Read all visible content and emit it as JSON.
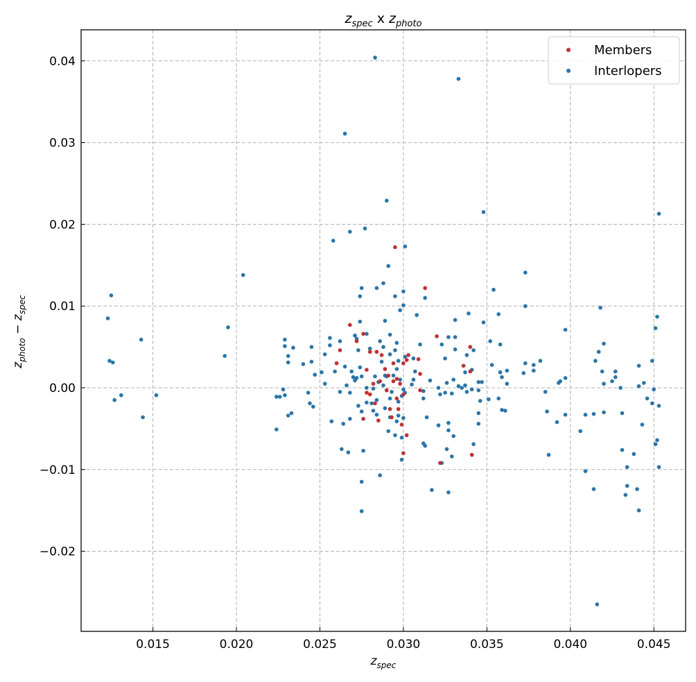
{
  "chart_data": {
    "type": "scatter",
    "title": "z_spec x z_photo",
    "title_parts": {
      "a": "z",
      "a_sub": "spec",
      "mid": " x ",
      "b": "z",
      "b_sub": "photo"
    },
    "xlabel_parts": {
      "main": "z",
      "sub": "spec"
    },
    "ylabel_parts": {
      "a": "z",
      "a_sub": "photo",
      "op": " − ",
      "b": "z",
      "b_sub": "spec"
    },
    "xlim": [
      0.0107,
      0.0469
    ],
    "ylim": [
      -0.0298,
      0.0438
    ],
    "xticks": [
      0.015,
      0.02,
      0.025,
      0.03,
      0.035,
      0.04,
      0.045
    ],
    "xtick_labels": [
      "0.015",
      "0.020",
      "0.025",
      "0.030",
      "0.035",
      "0.040",
      "0.045"
    ],
    "yticks": [
      -0.02,
      -0.01,
      0.0,
      0.01,
      0.02,
      0.03,
      0.04
    ],
    "ytick_labels": [
      "−0.02",
      "−0.01",
      "0.00",
      "0.01",
      "0.02",
      "0.03",
      "0.04"
    ],
    "grid": true,
    "legend_position": "top-right",
    "series": [
      {
        "name": "Members",
        "color": "#d62728",
        "points": [
          [
            0.0295,
            0.0172
          ],
          [
            0.0313,
            0.0122
          ],
          [
            0.0262,
            0.0046
          ],
          [
            0.0276,
            0.0066
          ],
          [
            0.0272,
            0.0057
          ],
          [
            0.028,
            0.0044
          ],
          [
            0.0284,
            0.0044
          ],
          [
            0.0287,
            0.004
          ],
          [
            0.0278,
            0.0022
          ],
          [
            0.0294,
            0.003
          ],
          [
            0.03,
            0.003
          ],
          [
            0.0303,
            0.004
          ],
          [
            0.0309,
            0.0035
          ],
          [
            0.0302,
            0.0034
          ],
          [
            0.032,
            0.0063
          ],
          [
            0.034,
            0.005
          ],
          [
            0.0336,
            0.0027
          ],
          [
            0.034,
            0.002
          ],
          [
            0.0289,
            0.0023
          ],
          [
            0.0282,
            0.0005
          ],
          [
            0.0291,
            0.0015
          ],
          [
            0.0294,
            0.0008
          ],
          [
            0.0296,
            0.0011
          ],
          [
            0.0298,
            0.0005
          ],
          [
            0.0286,
            0.0008
          ],
          [
            0.029,
            -0.0003
          ],
          [
            0.0296,
            -0.0013
          ],
          [
            0.03,
            -0.0008
          ],
          [
            0.0283,
            -0.0019
          ],
          [
            0.0278,
            -0.0006
          ],
          [
            0.028,
            -0.0008
          ],
          [
            0.0292,
            -0.0026
          ],
          [
            0.0297,
            -0.0026
          ],
          [
            0.0293,
            -0.0036
          ],
          [
            0.0276,
            -0.0038
          ],
          [
            0.0299,
            -0.0045
          ],
          [
            0.0302,
            -0.0058
          ],
          [
            0.03,
            -0.008
          ],
          [
            0.031,
            -0.0003
          ],
          [
            0.031,
            0.0017
          ],
          [
            0.026,
            0.003
          ],
          [
            0.0322,
            -0.0092
          ],
          [
            0.0341,
            -0.0082
          ],
          [
            0.0285,
            -0.004
          ],
          [
            0.0268,
            0.0077
          ]
        ]
      },
      {
        "name": "Interlopers",
        "color": "#1f77b4",
        "points": [
          [
            0.0283,
            0.0404
          ],
          [
            0.0333,
            0.0378
          ],
          [
            0.0265,
            0.0311
          ],
          [
            0.029,
            0.0229
          ],
          [
            0.0348,
            0.0215
          ],
          [
            0.0453,
            0.0213
          ],
          [
            0.0277,
            0.0195
          ],
          [
            0.0268,
            0.0191
          ],
          [
            0.0258,
            0.018
          ],
          [
            0.0301,
            0.0173
          ],
          [
            0.0291,
            0.0149
          ],
          [
            0.0373,
            0.0141
          ],
          [
            0.0204,
            0.0138
          ],
          [
            0.0288,
            0.0128
          ],
          [
            0.0354,
            0.012
          ],
          [
            0.0275,
            0.0122
          ],
          [
            0.0284,
            0.0122
          ],
          [
            0.03,
            0.0118
          ],
          [
            0.0313,
            0.011
          ],
          [
            0.0274,
            0.0112
          ],
          [
            0.0295,
            0.0112
          ],
          [
            0.0125,
            0.0113
          ],
          [
            0.03,
            0.0101
          ],
          [
            0.0373,
            0.01
          ],
          [
            0.0418,
            0.0098
          ],
          [
            0.0298,
            0.0095
          ],
          [
            0.0308,
            0.0089
          ],
          [
            0.0339,
            0.0091
          ],
          [
            0.0357,
            0.009
          ],
          [
            0.0123,
            0.0085
          ],
          [
            0.0452,
            0.0087
          ],
          [
            0.0274,
            0.0081
          ],
          [
            0.0289,
            0.0082
          ],
          [
            0.0331,
            0.0083
          ],
          [
            0.0348,
            0.008
          ],
          [
            0.0195,
            0.0074
          ],
          [
            0.0397,
            0.0071
          ],
          [
            0.0451,
            0.0073
          ],
          [
            0.0278,
            0.0066
          ],
          [
            0.0271,
            0.0064
          ],
          [
            0.0292,
            0.0065
          ],
          [
            0.0327,
            0.0062
          ],
          [
            0.0331,
            0.0062
          ],
          [
            0.0143,
            0.0059
          ],
          [
            0.0229,
            0.0059
          ],
          [
            0.0256,
            0.0061
          ],
          [
            0.0272,
            0.006
          ],
          [
            0.0262,
            0.0057
          ],
          [
            0.0286,
            0.0057
          ],
          [
            0.0296,
            0.0055
          ],
          [
            0.0352,
            0.0057
          ],
          [
            0.0358,
            0.0053
          ],
          [
            0.042,
            0.0054
          ],
          [
            0.031,
            0.0053
          ],
          [
            0.0323,
            0.0053
          ],
          [
            0.0229,
            0.0051
          ],
          [
            0.0234,
            0.0049
          ],
          [
            0.0245,
            0.005
          ],
          [
            0.0256,
            0.0052
          ],
          [
            0.028,
            0.0048
          ],
          [
            0.0295,
            0.0046
          ],
          [
            0.0331,
            0.0047
          ],
          [
            0.0342,
            0.0046
          ],
          [
            0.0273,
            0.0046
          ],
          [
            0.0292,
            0.0041
          ],
          [
            0.0301,
            0.0038
          ],
          [
            0.0306,
            0.0036
          ],
          [
            0.0253,
            0.0041
          ],
          [
            0.0231,
            0.0039
          ],
          [
            0.0193,
            0.0039
          ],
          [
            0.0231,
            0.0031
          ],
          [
            0.024,
            0.0029
          ],
          [
            0.0245,
            0.0032
          ],
          [
            0.0124,
            0.0033
          ],
          [
            0.0126,
            0.0031
          ],
          [
            0.0325,
            0.0036
          ],
          [
            0.0338,
            0.004
          ],
          [
            0.0373,
            0.003
          ],
          [
            0.0378,
            0.0028
          ],
          [
            0.0382,
            0.0033
          ],
          [
            0.0415,
            0.0033
          ],
          [
            0.0449,
            0.0033
          ],
          [
            0.0441,
            0.0027
          ],
          [
            0.0417,
            0.0044
          ],
          [
            0.0378,
            0.0021
          ],
          [
            0.0362,
            0.0021
          ],
          [
            0.0358,
            0.0019
          ],
          [
            0.0341,
            0.0022
          ],
          [
            0.0337,
            0.0019
          ],
          [
            0.0353,
            0.0028
          ],
          [
            0.0296,
            0.0023
          ],
          [
            0.0289,
            0.0015
          ],
          [
            0.0307,
            0.002
          ],
          [
            0.0287,
            0.0032
          ],
          [
            0.0274,
            0.0025
          ],
          [
            0.0265,
            0.0026
          ],
          [
            0.0269,
            0.002
          ],
          [
            0.0259,
            0.002
          ],
          [
            0.0251,
            0.0019
          ],
          [
            0.0247,
            0.0016
          ],
          [
            0.027,
            0.0013
          ],
          [
            0.0272,
            0.0012
          ],
          [
            0.0275,
            0.0014
          ],
          [
            0.0283,
            0.0014
          ],
          [
            0.029,
            0.0014
          ],
          [
            0.0294,
            0.0015
          ],
          [
            0.0298,
            0.001
          ],
          [
            0.0306,
            0.001
          ],
          [
            0.0316,
            0.0009
          ],
          [
            0.0326,
            0.0006
          ],
          [
            0.033,
            0.001
          ],
          [
            0.0333,
            0.0002
          ],
          [
            0.0337,
            0.0003
          ],
          [
            0.0345,
            0.0007
          ],
          [
            0.0347,
            0.0007
          ],
          [
            0.0359,
            0.0013
          ],
          [
            0.0362,
            0.0005
          ],
          [
            0.0372,
            0.0018
          ],
          [
            0.0393,
            0.0006
          ],
          [
            0.0394,
            0.0008
          ],
          [
            0.0397,
            0.0012
          ],
          [
            0.0419,
            0.002
          ],
          [
            0.0427,
            0.002
          ],
          [
            0.0425,
            0.0008
          ],
          [
            0.0427,
            0.0013
          ],
          [
            0.042,
            0.0005
          ],
          [
            0.043,
            0.0
          ],
          [
            0.0444,
            0.0006
          ],
          [
            0.0441,
            0.0002
          ],
          [
            0.045,
            -0.0002
          ],
          [
            0.0449,
            -0.0019
          ],
          [
            0.0453,
            -0.0022
          ],
          [
            0.0446,
            -0.0013
          ],
          [
            0.0253,
            0.0005
          ],
          [
            0.0266,
            0.0003
          ],
          [
            0.0271,
            0.0009
          ],
          [
            0.0278,
            0.0
          ],
          [
            0.0282,
            -0.0001
          ],
          [
            0.0285,
            0.0007
          ],
          [
            0.0288,
            0.0003
          ],
          [
            0.0293,
            -0.0005
          ],
          [
            0.03,
            -0.0002
          ],
          [
            0.0305,
            0.0004
          ],
          [
            0.0312,
            -0.0004
          ],
          [
            0.0321,
            0.0
          ],
          [
            0.0325,
            -0.0006
          ],
          [
            0.0335,
            0.0
          ],
          [
            0.0341,
            -0.0002
          ],
          [
            0.0345,
            -0.0003
          ],
          [
            0.0351,
            -0.0014
          ],
          [
            0.0357,
            -0.0013
          ],
          [
            0.0359,
            -0.0027
          ],
          [
            0.0361,
            -0.0028
          ],
          [
            0.0346,
            -0.0016
          ],
          [
            0.0338,
            -0.0005
          ],
          [
            0.0329,
            -0.0007
          ],
          [
            0.0322,
            -0.0008
          ],
          [
            0.0312,
            -0.0013
          ],
          [
            0.0299,
            -0.001
          ],
          [
            0.0297,
            -0.0017
          ],
          [
            0.0292,
            -0.0013
          ],
          [
            0.029,
            -0.0003
          ],
          [
            0.0284,
            -0.0015
          ],
          [
            0.0281,
            -0.0019
          ],
          [
            0.0273,
            -0.0022
          ],
          [
            0.0278,
            -0.0018
          ],
          [
            0.0268,
            -0.0006
          ],
          [
            0.0262,
            -0.0005
          ],
          [
            0.0229,
            -0.0009
          ],
          [
            0.0228,
            -0.0002
          ],
          [
            0.0226,
            -0.0011
          ],
          [
            0.0224,
            -0.0011
          ],
          [
            0.0243,
            -0.0006
          ],
          [
            0.0244,
            -0.0019
          ],
          [
            0.0246,
            -0.0023
          ],
          [
            0.0231,
            -0.0034
          ],
          [
            0.0233,
            -0.0031
          ],
          [
            0.0275,
            -0.0029
          ],
          [
            0.0282,
            -0.0028
          ],
          [
            0.0284,
            -0.0033
          ],
          [
            0.0289,
            -0.0025
          ],
          [
            0.0292,
            -0.0036
          ],
          [
            0.0297,
            -0.0034
          ],
          [
            0.03,
            -0.0037
          ],
          [
            0.0314,
            -0.0036
          ],
          [
            0.0296,
            -0.0041
          ],
          [
            0.0268,
            -0.0038
          ],
          [
            0.0257,
            -0.0041
          ],
          [
            0.0264,
            -0.0044
          ],
          [
            0.0224,
            -0.0051
          ],
          [
            0.0152,
            -0.0009
          ],
          [
            0.0131,
            -0.0009
          ],
          [
            0.0127,
            -0.0015
          ],
          [
            0.0144,
            -0.0036
          ],
          [
            0.0291,
            -0.0053
          ],
          [
            0.0295,
            -0.0058
          ],
          [
            0.0299,
            -0.0061
          ],
          [
            0.0321,
            -0.0046
          ],
          [
            0.0327,
            -0.0052
          ],
          [
            0.033,
            -0.0059
          ],
          [
            0.0327,
            -0.0043
          ],
          [
            0.0312,
            -0.0068
          ],
          [
            0.0313,
            -0.0071
          ],
          [
            0.0342,
            -0.0069
          ],
          [
            0.0345,
            -0.0031
          ],
          [
            0.0345,
            -0.0044
          ],
          [
            0.0386,
            -0.0029
          ],
          [
            0.0385,
            -0.0005
          ],
          [
            0.0397,
            -0.0033
          ],
          [
            0.0392,
            -0.0042
          ],
          [
            0.0406,
            -0.0053
          ],
          [
            0.0409,
            -0.0033
          ],
          [
            0.0414,
            -0.0032
          ],
          [
            0.042,
            -0.003
          ],
          [
            0.0431,
            -0.0031
          ],
          [
            0.0443,
            -0.0045
          ],
          [
            0.0452,
            -0.0064
          ],
          [
            0.0451,
            -0.0069
          ],
          [
            0.0263,
            -0.0075
          ],
          [
            0.0267,
            -0.0079
          ],
          [
            0.0276,
            -0.0077
          ],
          [
            0.0299,
            -0.0088
          ],
          [
            0.0323,
            -0.0092
          ],
          [
            0.0329,
            -0.0084
          ],
          [
            0.0326,
            -0.0075
          ],
          [
            0.0286,
            -0.0107
          ],
          [
            0.0275,
            -0.0115
          ],
          [
            0.0317,
            -0.0125
          ],
          [
            0.0327,
            -0.0128
          ],
          [
            0.0387,
            -0.0082
          ],
          [
            0.0409,
            -0.0102
          ],
          [
            0.0414,
            -0.0124
          ],
          [
            0.0431,
            -0.0076
          ],
          [
            0.0434,
            -0.0097
          ],
          [
            0.0434,
            -0.012
          ],
          [
            0.0438,
            -0.0081
          ],
          [
            0.044,
            -0.0124
          ],
          [
            0.0433,
            -0.0131
          ],
          [
            0.0441,
            -0.015
          ],
          [
            0.0453,
            -0.0097
          ],
          [
            0.0275,
            -0.0151
          ],
          [
            0.0416,
            -0.0265
          ],
          [
            0.0301,
            -0.0006
          ],
          [
            0.0288,
            0.005
          ],
          [
            0.0297,
            0.0033
          ]
        ]
      }
    ]
  }
}
